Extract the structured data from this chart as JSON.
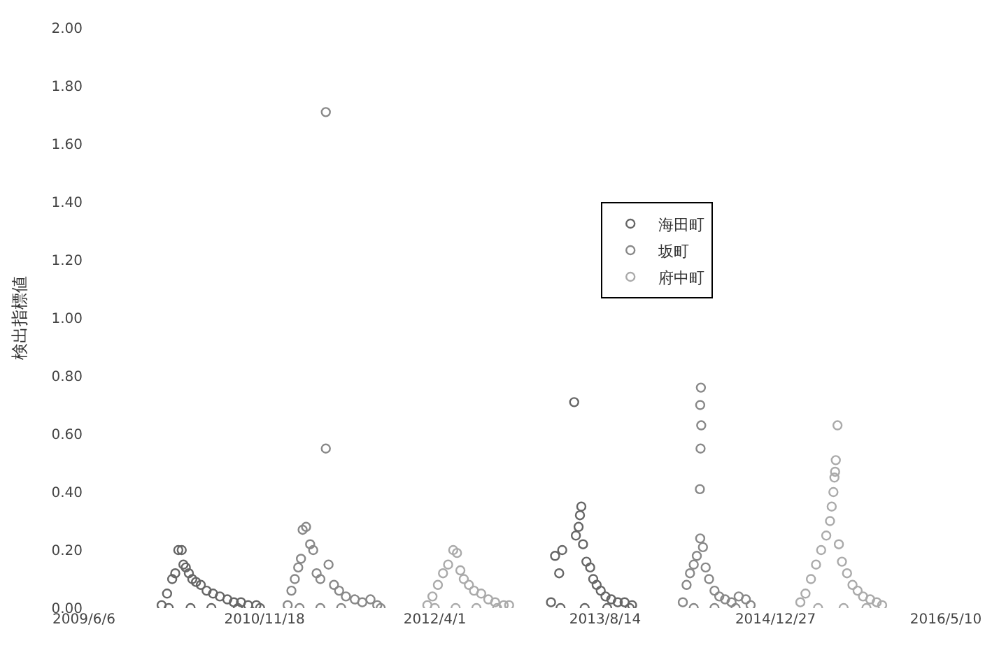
{
  "chart_data": {
    "type": "scatter",
    "ylabel": "検出指標値",
    "xlim": [
      "2009-06-06",
      "2016-05-10"
    ],
    "xticks": [
      {
        "value": "2009-06-06",
        "label": "2009/6/6"
      },
      {
        "value": "2010-11-18",
        "label": "2010/11/18"
      },
      {
        "value": "2012-04-01",
        "label": "2012/4/1"
      },
      {
        "value": "2013-08-14",
        "label": "2013/8/14"
      },
      {
        "value": "2014-12-27",
        "label": "2014/12/27"
      },
      {
        "value": "2016-05-10",
        "label": "2016/5/10"
      }
    ],
    "ylim": [
      0,
      2
    ],
    "yticks": [
      {
        "value": 0,
        "label": "0.00"
      },
      {
        "value": 0.2,
        "label": "0.20"
      },
      {
        "value": 0.4,
        "label": "0.40"
      },
      {
        "value": 0.6,
        "label": "0.60"
      },
      {
        "value": 0.8,
        "label": "0.80"
      },
      {
        "value": 1.0,
        "label": "1.00"
      },
      {
        "value": 1.2,
        "label": "1.20"
      },
      {
        "value": 1.4,
        "label": "1.40"
      },
      {
        "value": 1.6,
        "label": "1.60"
      },
      {
        "value": 1.8,
        "label": "1.80"
      },
      {
        "value": 2.0,
        "label": "2.00"
      }
    ],
    "legend": "right",
    "marker": "circle",
    "series": [
      {
        "name": "海田町",
        "color": "#666666",
        "x": [
          "2010-01-20",
          "2010-02-05",
          "2010-02-20",
          "2010-03-01",
          "2010-03-10",
          "2010-03-20",
          "2010-03-25",
          "2010-04-01",
          "2010-04-10",
          "2010-04-20",
          "2010-05-01",
          "2010-05-15",
          "2010-06-01",
          "2010-06-20",
          "2010-07-10",
          "2010-08-01",
          "2010-08-20",
          "2010-09-10",
          "2010-10-01",
          "2010-10-25",
          "2010-02-10",
          "2010-04-15",
          "2010-06-15",
          "2010-09-01",
          "2010-11-05",
          "2013-03-08",
          "2013-03-20",
          "2013-04-01",
          "2013-04-10",
          "2013-05-15",
          "2013-05-20",
          "2013-05-28",
          "2013-06-01",
          "2013-06-05",
          "2013-06-10",
          "2013-06-20",
          "2013-07-01",
          "2013-07-10",
          "2013-07-20",
          "2013-08-01",
          "2013-08-15",
          "2013-09-01",
          "2013-09-20",
          "2013-10-10",
          "2013-11-01",
          "2013-04-05",
          "2013-06-15",
          "2013-08-20",
          "2013-10-25"
        ],
        "values": [
          0.01,
          0.05,
          0.1,
          0.12,
          0.2,
          0.2,
          0.15,
          0.14,
          0.12,
          0.1,
          0.09,
          0.08,
          0.06,
          0.05,
          0.04,
          0.03,
          0.02,
          0.02,
          0.01,
          0.01,
          0,
          0,
          0,
          0,
          0,
          0.02,
          0.18,
          0.12,
          0.2,
          0.71,
          0.25,
          0.28,
          0.32,
          0.35,
          0.22,
          0.16,
          0.14,
          0.1,
          0.08,
          0.06,
          0.04,
          0.03,
          0.02,
          0.02,
          0.01,
          0,
          0,
          0,
          0
        ]
      },
      {
        "name": "坂町",
        "color": "#888888",
        "x": [
          "2011-01-25",
          "2011-02-05",
          "2011-02-15",
          "2011-02-25",
          "2011-03-05",
          "2011-03-10",
          "2011-03-20",
          "2011-04-01",
          "2011-04-10",
          "2011-04-20",
          "2011-05-01",
          "2011-05-17",
          "2011-05-17",
          "2011-05-25",
          "2011-06-10",
          "2011-06-25",
          "2011-07-15",
          "2011-08-10",
          "2011-09-01",
          "2011-09-25",
          "2011-10-15",
          "2011-03-01",
          "2011-05-01",
          "2011-07-01",
          "2011-10-25",
          "2014-03-30",
          "2014-04-10",
          "2014-04-20",
          "2014-05-01",
          "2014-05-10",
          "2014-05-22",
          "2014-05-20",
          "2014-05-23",
          "2014-05-21",
          "2014-05-19",
          "2014-05-20",
          "2014-05-28",
          "2014-06-05",
          "2014-06-15",
          "2014-07-01",
          "2014-07-15",
          "2014-08-01",
          "2014-08-20",
          "2014-09-10",
          "2014-10-01",
          "2014-10-15",
          "2014-05-01",
          "2014-07-01",
          "2014-09-01"
        ],
        "values": [
          0.01,
          0.06,
          0.1,
          0.14,
          0.17,
          0.27,
          0.28,
          0.22,
          0.2,
          0.12,
          0.1,
          1.71,
          0.55,
          0.15,
          0.08,
          0.06,
          0.04,
          0.03,
          0.02,
          0.03,
          0.01,
          0,
          0,
          0,
          0,
          0.02,
          0.08,
          0.12,
          0.15,
          0.18,
          0.76,
          0.7,
          0.63,
          0.55,
          0.41,
          0.24,
          0.21,
          0.14,
          0.1,
          0.06,
          0.04,
          0.03,
          0.02,
          0.04,
          0.03,
          0.01,
          0,
          0,
          0
        ]
      },
      {
        "name": "府中町",
        "color": "#aaaaaa",
        "x": [
          "2012-03-10",
          "2012-03-25",
          "2012-04-10",
          "2012-04-25",
          "2012-05-10",
          "2012-05-25",
          "2012-06-05",
          "2012-06-15",
          "2012-06-25",
          "2012-07-10",
          "2012-07-25",
          "2012-08-15",
          "2012-09-05",
          "2012-09-25",
          "2012-10-20",
          "2012-11-05",
          "2012-04-01",
          "2012-06-01",
          "2012-08-01",
          "2012-10-01",
          "2015-03-10",
          "2015-03-25",
          "2015-04-10",
          "2015-04-25",
          "2015-05-10",
          "2015-05-25",
          "2015-06-05",
          "2015-06-10",
          "2015-06-15",
          "2015-06-18",
          "2015-06-20",
          "2015-06-22",
          "2015-06-27",
          "2015-07-01",
          "2015-07-10",
          "2015-07-25",
          "2015-08-10",
          "2015-08-25",
          "2015-09-10",
          "2015-10-01",
          "2015-10-20",
          "2015-11-05",
          "2015-05-01",
          "2015-07-15",
          "2015-09-20"
        ],
        "values": [
          0.01,
          0.04,
          0.08,
          0.12,
          0.15,
          0.2,
          0.19,
          0.13,
          0.1,
          0.08,
          0.06,
          0.05,
          0.03,
          0.02,
          0.01,
          0.01,
          0,
          0,
          0,
          0,
          0.02,
          0.05,
          0.1,
          0.15,
          0.2,
          0.25,
          0.3,
          0.35,
          0.4,
          0.45,
          0.47,
          0.51,
          0.63,
          0.22,
          0.16,
          0.12,
          0.08,
          0.06,
          0.04,
          0.03,
          0.02,
          0.01,
          0,
          0,
          0
        ]
      }
    ]
  }
}
